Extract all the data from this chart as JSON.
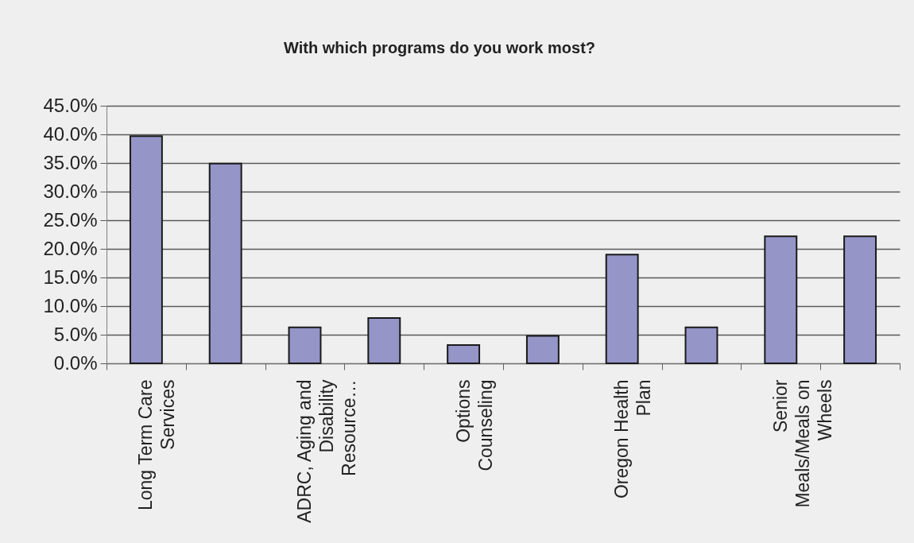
{
  "chart_data": {
    "type": "bar",
    "title": "With which programs do you work most?",
    "categories": [
      "Long Term Care Services",
      null,
      "ADRC, Aging and Disability Resource…",
      null,
      "Options Counseling",
      null,
      "Oregon Health Plan",
      null,
      "Senior Meals/Meals on Wheels",
      null
    ],
    "values": [
      39.7,
      34.9,
      6.3,
      7.9,
      3.2,
      4.8,
      19.0,
      6.3,
      22.2,
      22.2
    ],
    "color": "#9595c8",
    "ylim": [
      0,
      45
    ],
    "yticks": [
      {
        "value": 0,
        "label": "0.0%"
      },
      {
        "value": 5,
        "label": "5.0%"
      },
      {
        "value": 10,
        "label": "10.0%"
      },
      {
        "value": 15,
        "label": "15.0%"
      },
      {
        "value": 20,
        "label": "20.0%"
      },
      {
        "value": 25,
        "label": "25.0%"
      },
      {
        "value": 30,
        "label": "30.0%"
      },
      {
        "value": 35,
        "label": "35.0%"
      },
      {
        "value": 40,
        "label": "40.0%"
      },
      {
        "value": 45,
        "label": "45.0%"
      }
    ],
    "grid": "y"
  }
}
